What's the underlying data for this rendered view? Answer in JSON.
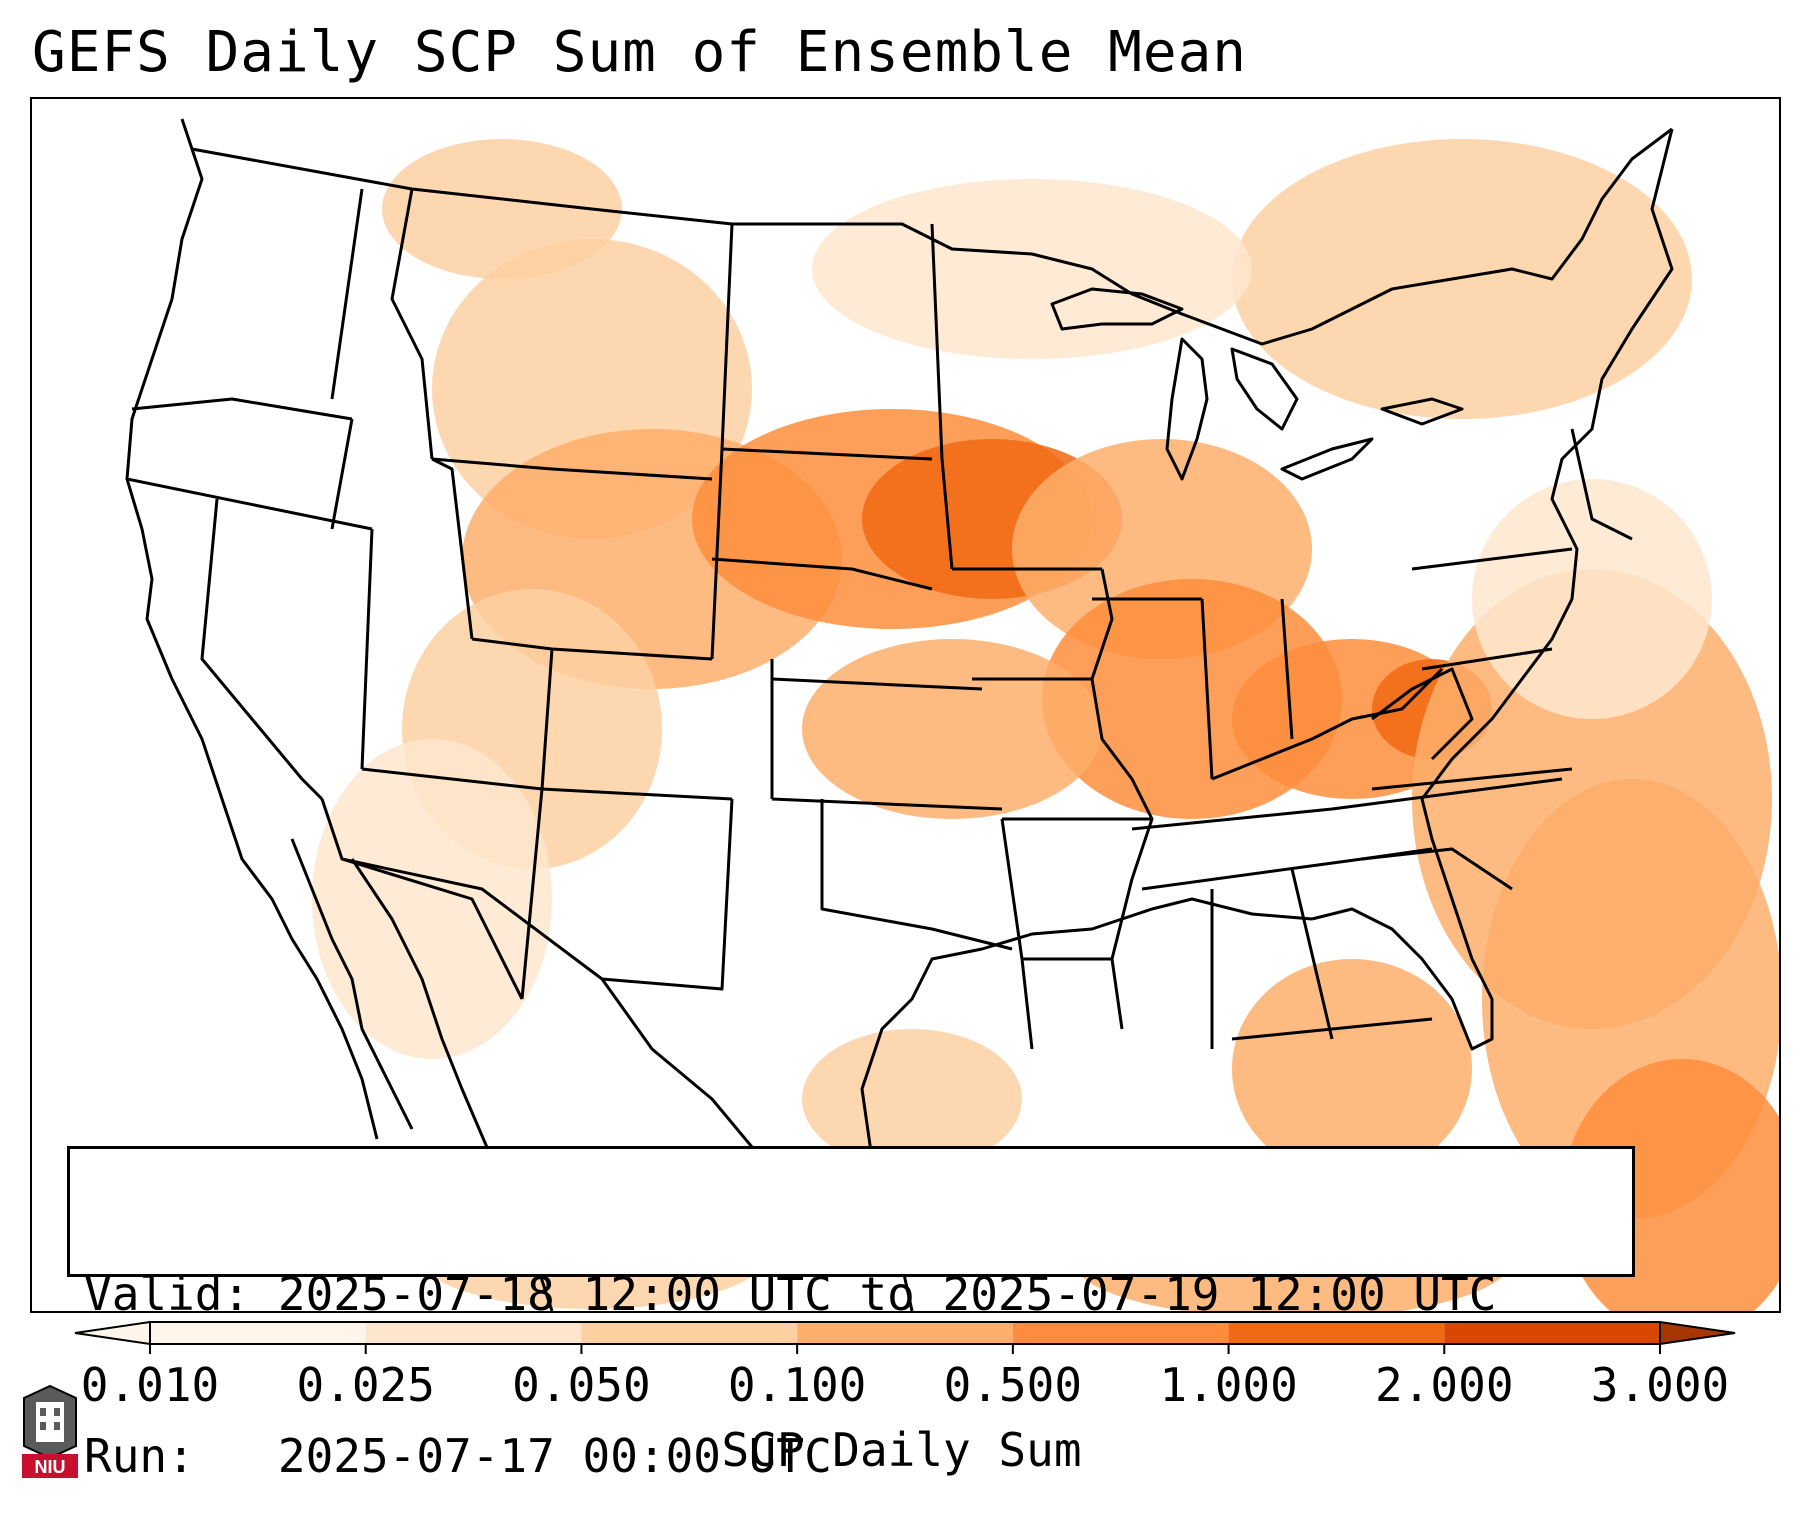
{
  "title": "GEFS Daily SCP Sum of Ensemble Mean",
  "info": {
    "valid_label": "Valid:",
    "valid_value": "2025-07-18 12:00 UTC to 2025-07-19 12:00 UTC",
    "run_label": "Run:",
    "run_value": "2025-07-17 00:00 UTC"
  },
  "colorbar": {
    "label": "SCP Daily Sum",
    "ticks": [
      "0.010",
      "0.025",
      "0.050",
      "0.100",
      "0.500",
      "1.000",
      "2.000",
      "3.000"
    ],
    "colors": [
      "#fff5eb",
      "#fee6ce",
      "#fdd0a2",
      "#fdae6b",
      "#fd8d3c",
      "#f16913",
      "#d94801",
      "#a63603"
    ],
    "extend": "both"
  },
  "logo": {
    "text": "NIU",
    "icon": "university-tower-icon",
    "color": "#c8102e"
  },
  "map": {
    "projection": "lambert-conformal",
    "region": "CONUS",
    "borders": [
      "coastlines",
      "country-borders",
      "state-borders"
    ]
  }
}
